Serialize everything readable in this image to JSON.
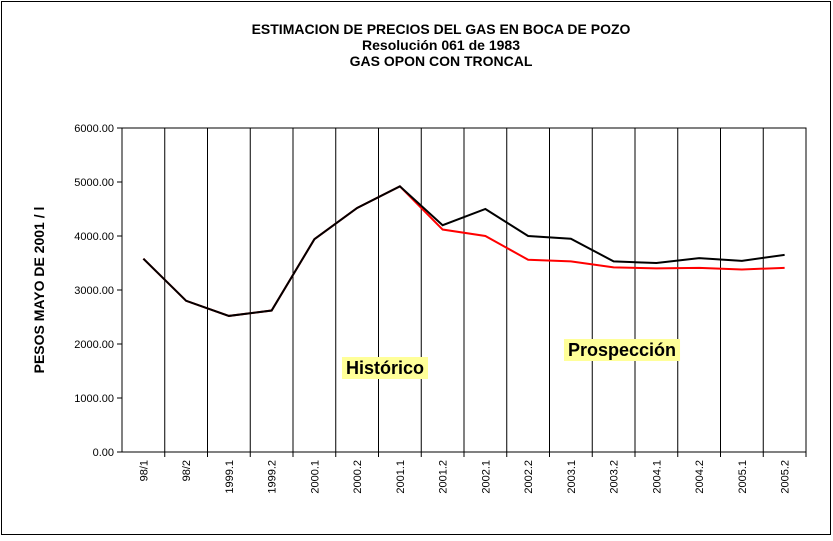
{
  "chart_data": {
    "type": "line",
    "title": "ESTIMACION DE PRECIOS DEL GAS EN BOCA DE POZO",
    "subtitle": [
      "Resolución 061 de 1983",
      "GAS OPON CON TRONCAL"
    ],
    "y_label": "PESOS MAYO DE 2001 / l",
    "categories": [
      "98/1",
      "98/2",
      "1999.1",
      "1999.2",
      "2000.1",
      "2000.2",
      "2001.1",
      "2001.2",
      "2002.1",
      "2002.2",
      "2003.1",
      "2003.2",
      "2004.1",
      "2004.2",
      "2005.1",
      "2005.2"
    ],
    "series": [
      {
        "color": "#ff0000",
        "values": [
          3580,
          2800,
          2520,
          2620,
          3940,
          4520,
          4920,
          4120,
          4000,
          3560,
          3530,
          3420,
          3400,
          3410,
          3380,
          3410
        ]
      },
      {
        "color": "#000000",
        "values": [
          3580,
          2800,
          2520,
          2620,
          3940,
          4520,
          4920,
          4200,
          4500,
          4000,
          3950,
          3530,
          3500,
          3590,
          3540,
          3650
        ]
      }
    ],
    "ylim": [
      0,
      6000
    ],
    "yticks": [
      {
        "value": 0,
        "label": "0.00"
      },
      {
        "value": 1000,
        "label": "1000.00"
      },
      {
        "value": 2000,
        "label": "2000.00"
      },
      {
        "value": 3000,
        "label": "3000.00"
      },
      {
        "value": 4000,
        "label": "4000.00"
      },
      {
        "value": 5000,
        "label": "5000.00"
      },
      {
        "value": 6000,
        "label": "6000.00"
      }
    ],
    "grid": false,
    "annotations": [
      "Histórico",
      "Prospección"
    ]
  }
}
